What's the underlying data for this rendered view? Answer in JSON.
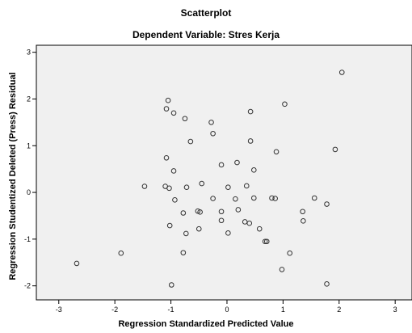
{
  "chart_data": {
    "type": "scatter",
    "title": "Scatterplot",
    "subtitle": "Dependent Variable: Stres Kerja",
    "xlabel": "Regression Standardized Predicted Value",
    "ylabel": "Regression Studentized Deleted (Press) Residual",
    "xlim": [
      -3.4,
      3.3
    ],
    "ylim": [
      -2.3,
      3.15
    ],
    "x_ticks": [
      -3,
      -2,
      -1,
      0,
      1,
      2,
      3
    ],
    "y_ticks": [
      -2,
      -1,
      0,
      1,
      2,
      3
    ],
    "grid": false,
    "plot_background": "#f0f0f0",
    "marker_color": "#333333",
    "points": [
      [
        2.05,
        2.57
      ],
      [
        -1.05,
        1.97
      ],
      [
        1.03,
        1.89
      ],
      [
        -1.08,
        1.79
      ],
      [
        -0.95,
        1.7
      ],
      [
        0.42,
        1.73
      ],
      [
        -0.75,
        1.58
      ],
      [
        -0.28,
        1.5
      ],
      [
        -0.25,
        1.26
      ],
      [
        -0.65,
        1.09
      ],
      [
        0.42,
        1.1
      ],
      [
        1.93,
        0.92
      ],
      [
        0.88,
        0.87
      ],
      [
        -1.08,
        0.74
      ],
      [
        0.18,
        0.64
      ],
      [
        -0.1,
        0.59
      ],
      [
        -0.95,
        0.46
      ],
      [
        0.48,
        0.48
      ],
      [
        -1.47,
        0.13
      ],
      [
        -1.1,
        0.13
      ],
      [
        -1.03,
        0.09
      ],
      [
        -0.72,
        0.11
      ],
      [
        -0.45,
        0.19
      ],
      [
        0.02,
        0.11
      ],
      [
        0.35,
        0.14
      ],
      [
        -0.93,
        -0.16
      ],
      [
        -0.25,
        -0.13
      ],
      [
        0.15,
        -0.14
      ],
      [
        0.48,
        -0.12
      ],
      [
        0.8,
        -0.12
      ],
      [
        0.86,
        -0.13
      ],
      [
        1.56,
        -0.12
      ],
      [
        1.78,
        -0.25
      ],
      [
        -0.78,
        -0.44
      ],
      [
        -0.52,
        -0.4
      ],
      [
        -0.48,
        -0.42
      ],
      [
        -0.1,
        -0.41
      ],
      [
        0.2,
        -0.37
      ],
      [
        1.35,
        -0.41
      ],
      [
        -0.1,
        -0.6
      ],
      [
        0.32,
        -0.63
      ],
      [
        0.4,
        -0.66
      ],
      [
        1.36,
        -0.61
      ],
      [
        -1.02,
        -0.71
      ],
      [
        -0.73,
        -0.88
      ],
      [
        -0.5,
        -0.78
      ],
      [
        0.02,
        -0.87
      ],
      [
        0.58,
        -0.78
      ],
      [
        0.68,
        -1.05
      ],
      [
        0.71,
        -1.05
      ],
      [
        -1.89,
        -1.3
      ],
      [
        -0.78,
        -1.29
      ],
      [
        1.12,
        -1.3
      ],
      [
        -2.68,
        -1.52
      ],
      [
        0.98,
        -1.65
      ],
      [
        -0.99,
        -1.98
      ],
      [
        1.78,
        -1.96
      ]
    ]
  }
}
